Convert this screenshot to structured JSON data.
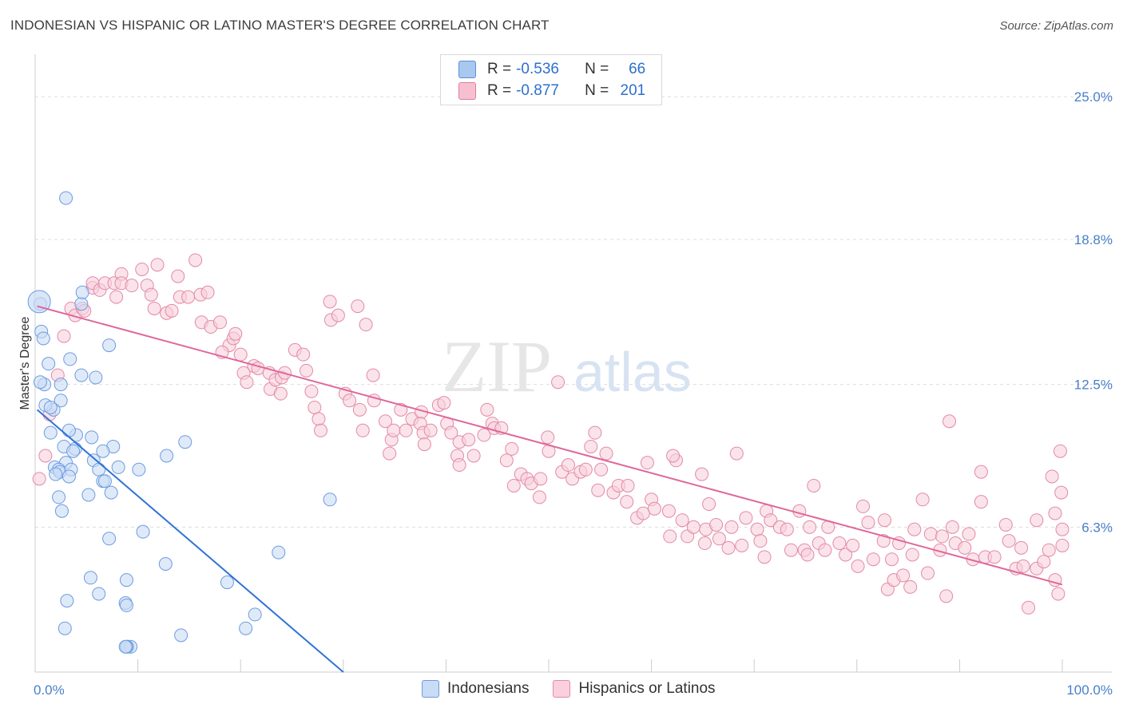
{
  "header": {
    "title": "INDONESIAN VS HISPANIC OR LATINO MASTER'S DEGREE CORRELATION CHART",
    "source": "Source: ZipAtlas.com"
  },
  "legend_box": {
    "rows": [
      {
        "r_label": "R =",
        "r_value": "-0.536",
        "n_label": "N =",
        "n_value": "66",
        "color": "#a8c8f0",
        "border": "#5b8fd6"
      },
      {
        "r_label": "R =",
        "r_value": "-0.877",
        "n_label": "N =",
        "n_value": "201",
        "color": "#f7c0d0",
        "border": "#e27aa0"
      }
    ]
  },
  "bottom_legend": [
    {
      "label": "Indonesians",
      "color": "#c9dcf5",
      "border": "#6d9be0"
    },
    {
      "label": "Hispanics or Latinos",
      "color": "#f9d0dc",
      "border": "#e28aa8"
    }
  ],
  "watermark": {
    "zip": "ZIP",
    "atlas": "atlas"
  },
  "chart_data": {
    "type": "scatter",
    "title": "INDONESIAN VS HISPANIC OR LATINO MASTER'S DEGREE CORRELATION CHART",
    "xlabel": "",
    "ylabel": "Master's Degree",
    "xlim": [
      0,
      100
    ],
    "ylim": [
      0,
      26.5
    ],
    "x_tick_labels": [
      "0.0%",
      "100.0%"
    ],
    "y_ticks": [
      6.3,
      12.5,
      18.8,
      25.0
    ],
    "y_tick_labels": [
      "6.3%",
      "12.5%",
      "18.8%",
      "25.0%"
    ],
    "grid": "horizontal dashed",
    "series": [
      {
        "name": "Indonesians",
        "color": "#6d9be0",
        "fill": "#c9dcf5",
        "trend": {
          "x": [
            0.2,
            30.0
          ],
          "y": [
            11.4,
            0.0
          ],
          "color": "#2e73d6"
        },
        "points": [
          [
            0.5,
            16.0
          ],
          [
            3.0,
            20.6
          ],
          [
            0.6,
            14.8
          ],
          [
            0.8,
            14.5
          ],
          [
            4.5,
            16.0
          ],
          [
            4.6,
            16.5
          ],
          [
            7.2,
            14.2
          ],
          [
            1.3,
            13.4
          ],
          [
            2.5,
            12.5
          ],
          [
            3.4,
            13.6
          ],
          [
            4.5,
            12.9
          ],
          [
            5.9,
            12.8
          ],
          [
            0.9,
            12.5
          ],
          [
            2.5,
            11.8
          ],
          [
            1.8,
            11.4
          ],
          [
            1.0,
            11.6
          ],
          [
            1.5,
            10.4
          ],
          [
            4.0,
            10.3
          ],
          [
            5.5,
            10.2
          ],
          [
            3.9,
            9.7
          ],
          [
            7.6,
            9.8
          ],
          [
            2.8,
            9.8
          ],
          [
            3.7,
            9.6
          ],
          [
            6.6,
            9.6
          ],
          [
            14.6,
            10.0
          ],
          [
            5.7,
            9.2
          ],
          [
            12.8,
            9.4
          ],
          [
            3.0,
            9.1
          ],
          [
            1.9,
            8.9
          ],
          [
            2.3,
            8.8
          ],
          [
            2.4,
            8.7
          ],
          [
            3.5,
            8.8
          ],
          [
            8.1,
            8.9
          ],
          [
            10.1,
            8.8
          ],
          [
            6.2,
            8.8
          ],
          [
            2.0,
            8.6
          ],
          [
            3.3,
            8.5
          ],
          [
            6.6,
            8.3
          ],
          [
            6.8,
            8.3
          ],
          [
            7.4,
            7.8
          ],
          [
            2.3,
            7.6
          ],
          [
            5.2,
            7.7
          ],
          [
            2.6,
            7.0
          ],
          [
            28.7,
            7.5
          ],
          [
            7.2,
            5.8
          ],
          [
            10.5,
            6.1
          ],
          [
            23.7,
            5.2
          ],
          [
            12.7,
            4.7
          ],
          [
            5.4,
            4.1
          ],
          [
            8.9,
            4.0
          ],
          [
            18.7,
            3.9
          ],
          [
            6.2,
            3.4
          ],
          [
            3.1,
            3.1
          ],
          [
            8.8,
            3.0
          ],
          [
            8.9,
            2.9
          ],
          [
            21.4,
            2.5
          ],
          [
            2.9,
            1.9
          ],
          [
            20.5,
            1.9
          ],
          [
            14.2,
            1.6
          ],
          [
            9.0,
            1.1
          ],
          [
            9.3,
            1.1
          ],
          [
            8.9,
            1.1
          ],
          [
            8.8,
            1.1
          ],
          [
            0.5,
            12.6
          ],
          [
            1.5,
            11.5
          ],
          [
            3.3,
            10.5
          ]
        ]
      },
      {
        "name": "Hispanics or Latinos",
        "color": "#e28aa8",
        "fill": "#f9d0dc",
        "trend": {
          "x": [
            0.2,
            100.0
          ],
          "y": [
            15.9,
            3.8
          ],
          "color": "#e0679a"
        },
        "points": [
          [
            0.4,
            8.4
          ],
          [
            1.0,
            9.4
          ],
          [
            1.4,
            11.2
          ],
          [
            2.2,
            12.9
          ],
          [
            2.8,
            14.6
          ],
          [
            3.5,
            15.8
          ],
          [
            3.9,
            15.5
          ],
          [
            4.6,
            15.8
          ],
          [
            4.8,
            15.7
          ],
          [
            5.6,
            16.7
          ],
          [
            5.6,
            16.9
          ],
          [
            6.3,
            16.6
          ],
          [
            6.8,
            16.9
          ],
          [
            7.7,
            16.9
          ],
          [
            7.9,
            16.3
          ],
          [
            8.4,
            17.3
          ],
          [
            8.4,
            16.9
          ],
          [
            9.4,
            16.8
          ],
          [
            10.4,
            17.5
          ],
          [
            10.9,
            16.8
          ],
          [
            11.3,
            16.4
          ],
          [
            11.6,
            15.8
          ],
          [
            11.9,
            17.7
          ],
          [
            12.8,
            15.6
          ],
          [
            13.3,
            15.7
          ],
          [
            13.9,
            17.2
          ],
          [
            14.1,
            16.3
          ],
          [
            14.9,
            16.3
          ],
          [
            15.6,
            17.9
          ],
          [
            16.1,
            16.4
          ],
          [
            16.8,
            16.5
          ],
          [
            16.2,
            15.2
          ],
          [
            17.1,
            15.0
          ],
          [
            18.0,
            15.2
          ],
          [
            18.9,
            14.2
          ],
          [
            19.3,
            14.5
          ],
          [
            19.5,
            14.7
          ],
          [
            18.2,
            13.9
          ],
          [
            20.0,
            13.8
          ],
          [
            20.3,
            13.0
          ],
          [
            20.6,
            12.6
          ],
          [
            21.3,
            13.3
          ],
          [
            21.7,
            13.2
          ],
          [
            22.8,
            13.0
          ],
          [
            22.9,
            12.3
          ],
          [
            23.4,
            12.7
          ],
          [
            24.0,
            12.8
          ],
          [
            24.3,
            13.0
          ],
          [
            23.9,
            12.1
          ],
          [
            25.3,
            14.0
          ],
          [
            26.1,
            13.8
          ],
          [
            26.4,
            13.1
          ],
          [
            26.9,
            12.2
          ],
          [
            27.2,
            11.5
          ],
          [
            27.6,
            11.0
          ],
          [
            27.8,
            10.5
          ],
          [
            28.7,
            16.1
          ],
          [
            28.8,
            15.3
          ],
          [
            29.5,
            15.5
          ],
          [
            30.2,
            12.1
          ],
          [
            31.4,
            15.9
          ],
          [
            32.2,
            15.1
          ],
          [
            31.9,
            10.5
          ],
          [
            30.6,
            11.8
          ],
          [
            31.6,
            11.4
          ],
          [
            32.9,
            12.9
          ],
          [
            33.0,
            11.8
          ],
          [
            34.1,
            10.9
          ],
          [
            34.7,
            10.1
          ],
          [
            34.9,
            10.5
          ],
          [
            34.5,
            9.5
          ],
          [
            35.6,
            11.4
          ],
          [
            36.1,
            10.5
          ],
          [
            36.7,
            11.0
          ],
          [
            37.6,
            11.3
          ],
          [
            37.5,
            10.8
          ],
          [
            37.8,
            10.4
          ],
          [
            37.9,
            9.9
          ],
          [
            38.5,
            10.5
          ],
          [
            39.3,
            11.6
          ],
          [
            39.8,
            11.7
          ],
          [
            40.1,
            10.8
          ],
          [
            40.5,
            10.4
          ],
          [
            41.3,
            10.0
          ],
          [
            41.1,
            9.4
          ],
          [
            41.3,
            9.0
          ],
          [
            42.2,
            10.1
          ],
          [
            42.7,
            9.4
          ],
          [
            43.7,
            10.3
          ],
          [
            44.0,
            11.4
          ],
          [
            44.5,
            10.8
          ],
          [
            44.7,
            10.6
          ],
          [
            45.4,
            10.6
          ],
          [
            45.9,
            9.2
          ],
          [
            46.4,
            9.7
          ],
          [
            46.6,
            8.1
          ],
          [
            47.3,
            8.6
          ],
          [
            47.9,
            8.4
          ],
          [
            48.3,
            8.2
          ],
          [
            49.1,
            7.6
          ],
          [
            49.2,
            8.4
          ],
          [
            49.9,
            10.2
          ],
          [
            50.0,
            9.6
          ],
          [
            50.9,
            12.6
          ],
          [
            51.3,
            8.7
          ],
          [
            51.9,
            9.0
          ],
          [
            52.3,
            8.4
          ],
          [
            53.1,
            8.7
          ],
          [
            53.6,
            8.8
          ],
          [
            54.1,
            9.8
          ],
          [
            54.5,
            10.4
          ],
          [
            54.8,
            7.9
          ],
          [
            55.1,
            8.8
          ],
          [
            55.6,
            9.5
          ],
          [
            56.3,
            7.8
          ],
          [
            56.8,
            8.1
          ],
          [
            57.6,
            7.4
          ],
          [
            57.7,
            8.1
          ],
          [
            58.6,
            6.7
          ],
          [
            59.2,
            6.9
          ],
          [
            59.6,
            9.1
          ],
          [
            60.0,
            7.5
          ],
          [
            60.3,
            7.1
          ],
          [
            61.7,
            7.0
          ],
          [
            62.4,
            9.2
          ],
          [
            61.8,
            5.9
          ],
          [
            62.1,
            9.4
          ],
          [
            63.0,
            6.6
          ],
          [
            63.5,
            5.9
          ],
          [
            64.1,
            6.3
          ],
          [
            64.9,
            8.6
          ],
          [
            65.2,
            5.6
          ],
          [
            65.3,
            6.2
          ],
          [
            65.6,
            7.3
          ],
          [
            66.3,
            6.4
          ],
          [
            66.6,
            5.8
          ],
          [
            67.8,
            6.3
          ],
          [
            67.5,
            5.4
          ],
          [
            68.3,
            9.5
          ],
          [
            68.8,
            5.5
          ],
          [
            69.2,
            6.7
          ],
          [
            70.3,
            6.2
          ],
          [
            70.6,
            5.7
          ],
          [
            71.0,
            5.0
          ],
          [
            71.2,
            7.0
          ],
          [
            71.6,
            6.6
          ],
          [
            72.5,
            6.3
          ],
          [
            73.2,
            6.2
          ],
          [
            73.6,
            5.3
          ],
          [
            74.4,
            7.0
          ],
          [
            74.9,
            5.3
          ],
          [
            75.2,
            5.1
          ],
          [
            75.4,
            6.3
          ],
          [
            75.8,
            8.1
          ],
          [
            76.3,
            5.6
          ],
          [
            76.9,
            5.3
          ],
          [
            77.2,
            6.3
          ],
          [
            78.3,
            5.6
          ],
          [
            78.9,
            5.1
          ],
          [
            79.6,
            5.5
          ],
          [
            80.1,
            4.6
          ],
          [
            80.6,
            7.2
          ],
          [
            81.1,
            6.5
          ],
          [
            82.7,
            6.6
          ],
          [
            81.6,
            4.9
          ],
          [
            82.6,
            5.7
          ],
          [
            83.0,
            3.6
          ],
          [
            83.4,
            4.9
          ],
          [
            83.6,
            4.0
          ],
          [
            84.1,
            5.6
          ],
          [
            84.5,
            4.2
          ],
          [
            85.2,
            3.7
          ],
          [
            85.6,
            6.2
          ],
          [
            85.4,
            5.1
          ],
          [
            86.4,
            7.5
          ],
          [
            86.9,
            4.3
          ],
          [
            87.2,
            6.0
          ],
          [
            88.1,
            5.3
          ],
          [
            88.3,
            5.9
          ],
          [
            88.7,
            3.3
          ],
          [
            89.0,
            10.9
          ],
          [
            89.6,
            5.6
          ],
          [
            89.3,
            6.3
          ],
          [
            90.5,
            5.4
          ],
          [
            90.9,
            6.0
          ],
          [
            91.3,
            4.9
          ],
          [
            92.1,
            7.4
          ],
          [
            92.1,
            8.7
          ],
          [
            92.5,
            5.0
          ],
          [
            93.4,
            5.0
          ],
          [
            94.5,
            6.4
          ],
          [
            94.8,
            5.7
          ],
          [
            95.5,
            4.5
          ],
          [
            96.0,
            5.4
          ],
          [
            96.2,
            4.6
          ],
          [
            96.7,
            2.8
          ],
          [
            97.5,
            6.6
          ],
          [
            97.5,
            4.5
          ],
          [
            98.2,
            4.8
          ],
          [
            98.7,
            5.3
          ],
          [
            99.0,
            8.5
          ],
          [
            99.3,
            4.0
          ],
          [
            99.3,
            6.9
          ],
          [
            99.6,
            3.4
          ],
          [
            99.8,
            9.6
          ],
          [
            99.9,
            7.8
          ],
          [
            100.0,
            6.2
          ],
          [
            100.0,
            5.5
          ]
        ]
      }
    ]
  }
}
